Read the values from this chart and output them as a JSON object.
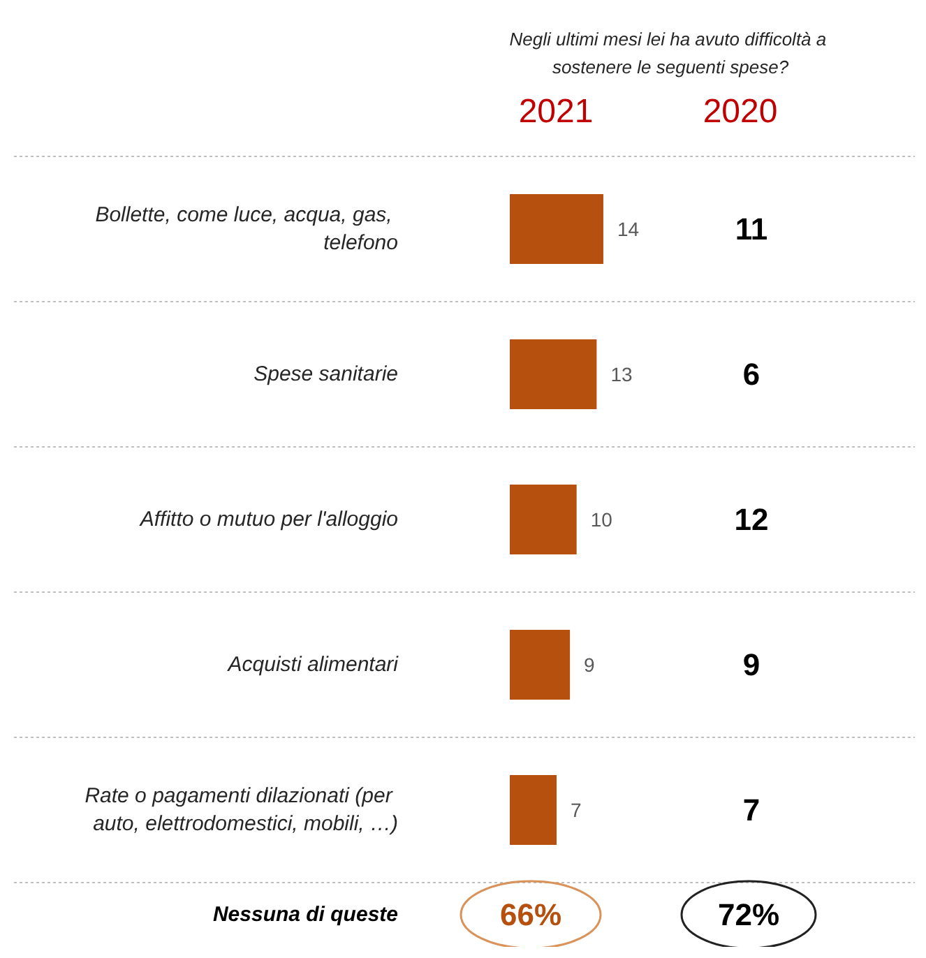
{
  "chart_data": [
    {
      "type": "bar",
      "orientation": "horizontal",
      "title": "Negli ultimi mesi lei ha avuto difficoltà a sostenere le seguenti spese?",
      "categories": [
        "Bollette, come luce, acqua, gas, telefono",
        "Spese sanitarie",
        "Affitto o mutuo per l'alloggio",
        "Acquisti alimentari",
        "Rate o pagamenti dilazionati (per auto, elettrodomestici, mobili, …)"
      ],
      "series": [
        {
          "name": "2021",
          "color": "#b5500f",
          "values": [
            14,
            13,
            10,
            9,
            7
          ]
        }
      ],
      "data_labels": true,
      "grid": "y",
      "legend": false,
      "annotations": [
        "Nessuna di queste",
        "66%"
      ]
    },
    {
      "type": "other",
      "title": "2020",
      "categories": [
        null,
        null,
        null,
        null,
        null
      ],
      "values": [
        11,
        6,
        12,
        9,
        7
      ],
      "data_labels": true,
      "annotations": [
        "72%"
      ]
    }
  ]
}
